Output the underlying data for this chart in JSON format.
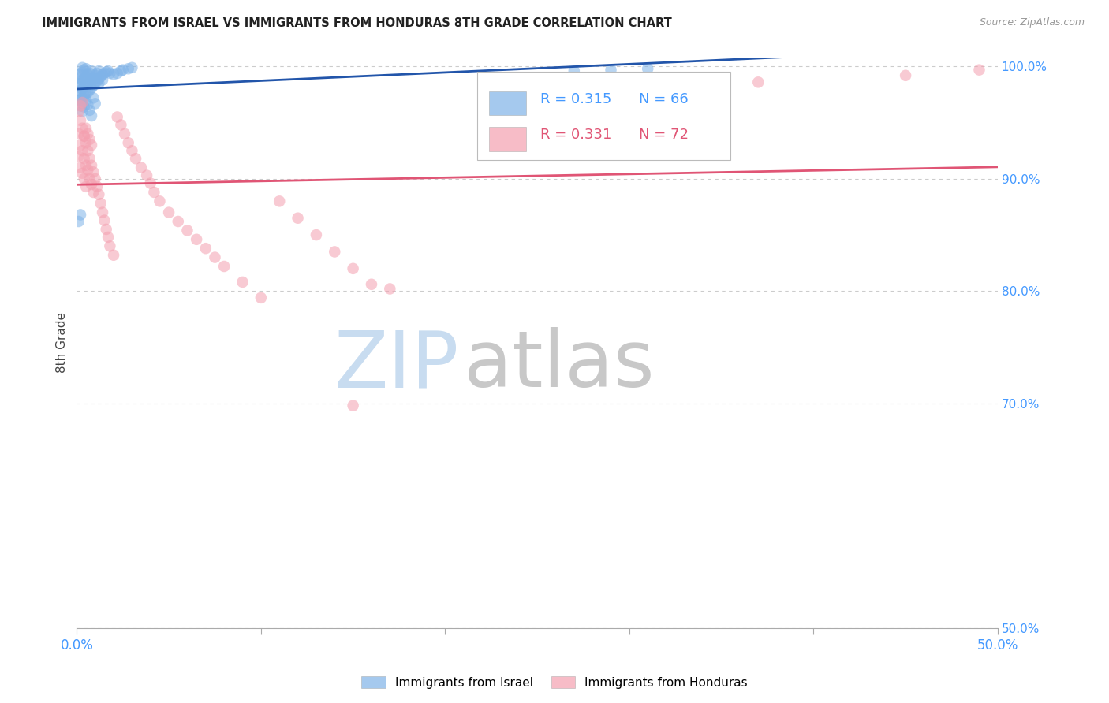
{
  "title": "IMMIGRANTS FROM ISRAEL VS IMMIGRANTS FROM HONDURAS 8TH GRADE CORRELATION CHART",
  "source": "Source: ZipAtlas.com",
  "ylabel": "8th Grade",
  "xmin": 0.0,
  "xmax": 0.5,
  "ymin": 0.5,
  "ymax": 1.008,
  "legend_israel_R": "0.315",
  "legend_israel_N": "66",
  "legend_honduras_R": "0.331",
  "legend_honduras_N": "72",
  "color_israel": "#7FB3E8",
  "color_honduras": "#F4A0B0",
  "trendline_israel_color": "#2255AA",
  "trendline_honduras_color": "#E05575",
  "grid_color": "#CCCCCC",
  "background_color": "#FFFFFF",
  "watermark_zip_color": "#C8DCF0",
  "watermark_atlas_color": "#C8C8C8",
  "title_color": "#222222",
  "source_color": "#999999",
  "axis_label_color": "#4499FF",
  "ylabel_color": "#444444",
  "israel_x": [
    0.001,
    0.001,
    0.001,
    0.002,
    0.002,
    0.002,
    0.002,
    0.003,
    0.003,
    0.003,
    0.003,
    0.003,
    0.004,
    0.004,
    0.004,
    0.004,
    0.005,
    0.005,
    0.005,
    0.005,
    0.006,
    0.006,
    0.006,
    0.007,
    0.007,
    0.007,
    0.008,
    0.008,
    0.008,
    0.009,
    0.009,
    0.01,
    0.01,
    0.011,
    0.011,
    0.012,
    0.012,
    0.013,
    0.014,
    0.015,
    0.016,
    0.017,
    0.018,
    0.02,
    0.022,
    0.024,
    0.025,
    0.028,
    0.03,
    0.001,
    0.002,
    0.002,
    0.003,
    0.003,
    0.004,
    0.005,
    0.006,
    0.007,
    0.008,
    0.009,
    0.01,
    0.012,
    0.014,
    0.27,
    0.29,
    0.31
  ],
  "israel_y": [
    0.975,
    0.983,
    0.99,
    0.97,
    0.978,
    0.985,
    0.993,
    0.972,
    0.98,
    0.988,
    0.995,
    0.999,
    0.974,
    0.982,
    0.989,
    0.997,
    0.976,
    0.984,
    0.991,
    0.998,
    0.977,
    0.985,
    0.993,
    0.979,
    0.987,
    0.994,
    0.981,
    0.989,
    0.996,
    0.983,
    0.99,
    0.985,
    0.992,
    0.987,
    0.994,
    0.989,
    0.996,
    0.991,
    0.993,
    0.994,
    0.995,
    0.996,
    0.994,
    0.993,
    0.994,
    0.996,
    0.997,
    0.998,
    0.999,
    0.862,
    0.868,
    0.965,
    0.96,
    0.968,
    0.964,
    0.97,
    0.966,
    0.961,
    0.956,
    0.972,
    0.967,
    0.985,
    0.988,
    0.996,
    0.997,
    0.998
  ],
  "honduras_x": [
    0.001,
    0.001,
    0.002,
    0.002,
    0.002,
    0.003,
    0.003,
    0.003,
    0.004,
    0.004,
    0.004,
    0.005,
    0.005,
    0.005,
    0.006,
    0.006,
    0.007,
    0.007,
    0.008,
    0.008,
    0.009,
    0.009,
    0.01,
    0.011,
    0.012,
    0.013,
    0.014,
    0.015,
    0.016,
    0.017,
    0.018,
    0.02,
    0.022,
    0.024,
    0.026,
    0.028,
    0.03,
    0.032,
    0.035,
    0.038,
    0.04,
    0.042,
    0.045,
    0.05,
    0.055,
    0.06,
    0.065,
    0.07,
    0.075,
    0.08,
    0.09,
    0.1,
    0.11,
    0.12,
    0.13,
    0.14,
    0.15,
    0.16,
    0.001,
    0.002,
    0.003,
    0.004,
    0.005,
    0.006,
    0.007,
    0.008,
    0.15,
    0.17,
    0.31,
    0.37,
    0.45,
    0.49
  ],
  "honduras_y": [
    0.94,
    0.92,
    0.952,
    0.93,
    0.91,
    0.945,
    0.925,
    0.905,
    0.938,
    0.918,
    0.9,
    0.932,
    0.912,
    0.893,
    0.925,
    0.908,
    0.918,
    0.9,
    0.912,
    0.895,
    0.906,
    0.888,
    0.9,
    0.893,
    0.886,
    0.878,
    0.87,
    0.863,
    0.855,
    0.848,
    0.84,
    0.832,
    0.955,
    0.948,
    0.94,
    0.932,
    0.925,
    0.918,
    0.91,
    0.903,
    0.896,
    0.888,
    0.88,
    0.87,
    0.862,
    0.854,
    0.846,
    0.838,
    0.83,
    0.822,
    0.808,
    0.794,
    0.88,
    0.865,
    0.85,
    0.835,
    0.82,
    0.806,
    0.96,
    0.965,
    0.968,
    0.938,
    0.945,
    0.94,
    0.935,
    0.93,
    0.698,
    0.802,
    0.982,
    0.986,
    0.992,
    0.997
  ]
}
